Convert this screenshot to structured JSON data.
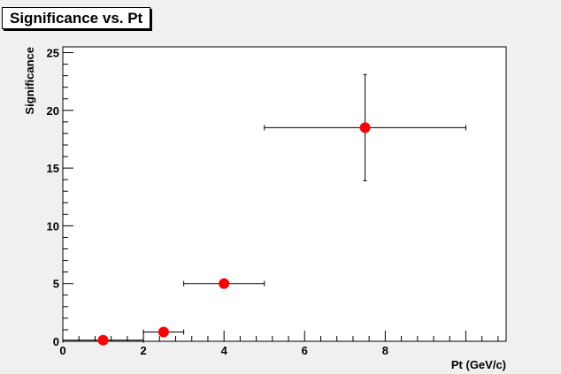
{
  "window": {
    "title": "Significance vs. Pt"
  },
  "chart_data": {
    "type": "scatter",
    "title": "Significance vs. Pt",
    "xlabel": "Pt (GeV/c)",
    "ylabel": "Significance",
    "xlim": [
      0,
      11
    ],
    "ylim": [
      0,
      25.5
    ],
    "x_ticks": [
      0,
      2,
      4,
      6,
      8
    ],
    "y_ticks": [
      0,
      5,
      10,
      15,
      20,
      25
    ],
    "grid": false,
    "legend": "none",
    "marker_color": "#ff0000",
    "series": [
      {
        "points": [
          {
            "x": 1.0,
            "y": 0.1,
            "xerr": 1.0,
            "yerr": 0.0
          },
          {
            "x": 2.5,
            "y": 0.8,
            "xerr": 0.5,
            "yerr": 0.0
          },
          {
            "x": 4.0,
            "y": 5.0,
            "xerr": 1.0,
            "yerr": 0.0
          },
          {
            "x": 7.5,
            "y": 18.5,
            "xerr": 2.5,
            "yerr": 4.6
          }
        ]
      }
    ]
  }
}
